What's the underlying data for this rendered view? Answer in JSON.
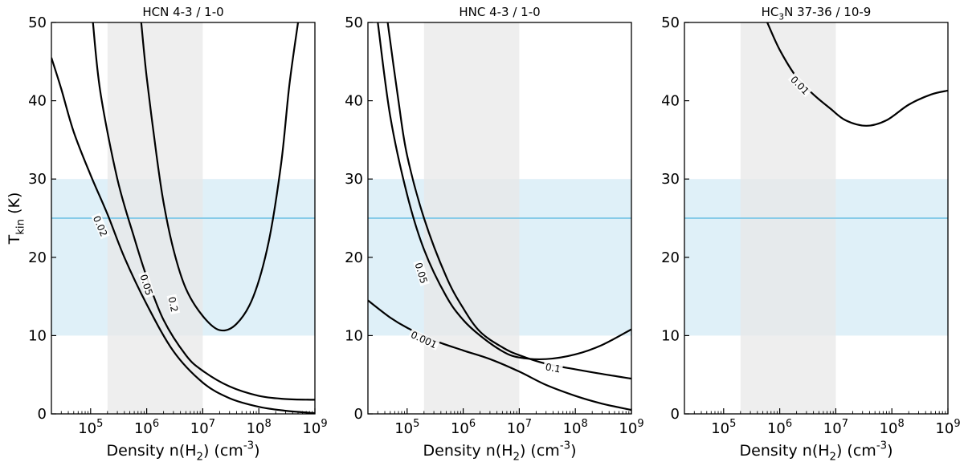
{
  "chart_data": [
    {
      "type": "line",
      "title": "HCN 4-3 / 1-0",
      "xlabel": "Density n(H$_2$) (cm$^{-3}$)",
      "ylabel": "T$_{kin}$ (K)",
      "xscale": "log",
      "xlim": [
        20000,
        1000000000
      ],
      "ylim": [
        0,
        50
      ],
      "xticks": [
        100000,
        1000000,
        10000000,
        100000000,
        1000000000
      ],
      "xtick_labels": [
        "10^5",
        "10^6",
        "10^7",
        "10^8",
        "10^9"
      ],
      "yticks": [
        0,
        10,
        20,
        30,
        40,
        50
      ],
      "ytick_labels": [
        "0",
        "10",
        "20",
        "30",
        "40",
        "50"
      ],
      "grey_band_x": [
        200000,
        10000000
      ],
      "blue_band_y": [
        10,
        30
      ],
      "blue_line_y": 25,
      "colors": {
        "grey_band": "#e8e8e8",
        "blue_band": "#dff0f8",
        "blue_line": "#87cbe8",
        "contour": "#000000"
      },
      "series": [
        {
          "name": "0.02",
          "x": [
            20000,
            30000,
            50000,
            100000,
            200000,
            400000,
            1000000,
            3000000,
            10000000,
            30000000,
            100000000,
            300000000,
            1000000000
          ],
          "y": [
            45.5,
            41.5,
            36,
            30.5,
            25.5,
            20,
            14,
            8,
            4,
            2,
            0.9,
            0.4,
            0.1
          ],
          "label_at": [
            150000,
            24
          ]
        },
        {
          "name": "0.05",
          "x": [
            110000,
            150000,
            300000,
            600000,
            1000000,
            2000000,
            5000000,
            10000000,
            30000000,
            100000000,
            300000000,
            1000000000
          ],
          "y": [
            50,
            41,
            30,
            22.5,
            17.5,
            12,
            7.5,
            5.5,
            3.5,
            2.3,
            1.9,
            1.8
          ],
          "label_at": [
            1000000,
            16.5
          ]
        },
        {
          "name": "0.2",
          "x": [
            800000,
            1000000,
            1500000,
            2000000,
            3000000,
            5000000,
            10000000,
            20000000,
            40000000,
            80000000,
            150000000,
            250000000,
            350000000,
            500000000
          ],
          "y": [
            50,
            43,
            33,
            27,
            21,
            16,
            12.5,
            10.7,
            11.5,
            15,
            22,
            32,
            42,
            50
          ],
          "label_at": [
            3000000,
            14
          ]
        }
      ]
    },
    {
      "type": "line",
      "title": "HNC 4-3 / 1-0",
      "xlabel": "Density n(H$_2$) (cm$^{-3}$)",
      "ylabel": "",
      "xscale": "log",
      "xlim": [
        20000,
        1000000000
      ],
      "ylim": [
        0,
        50
      ],
      "xticks": [
        100000,
        1000000,
        10000000,
        100000000,
        1000000000
      ],
      "xtick_labels": [
        "10^5",
        "10^6",
        "10^7",
        "10^8",
        "10^9"
      ],
      "yticks": [
        0,
        10,
        20,
        30,
        40,
        50
      ],
      "ytick_labels": [
        "0",
        "10",
        "20",
        "30",
        "40",
        "50"
      ],
      "grey_band_x": [
        200000,
        10000000
      ],
      "blue_band_y": [
        10,
        30
      ],
      "blue_line_y": 25,
      "colors": {
        "grey_band": "#e8e8e8",
        "blue_band": "#dff0f8",
        "blue_line": "#87cbe8",
        "contour": "#000000"
      },
      "series": [
        {
          "name": "0.001",
          "x": [
            20000,
            50000,
            100000,
            300000,
            1000000,
            3000000,
            10000000,
            30000000,
            100000000,
            300000000,
            1000000000
          ],
          "y": [
            14.5,
            12.3,
            11,
            9.4,
            8.1,
            7,
            5.4,
            3.7,
            2.3,
            1.3,
            0.5
          ],
          "label_at": [
            200000,
            9.5
          ]
        },
        {
          "name": "0.05",
          "x": [
            30000,
            50000,
            100000,
            200000,
            500000,
            1000000,
            2000000,
            5000000,
            10000000,
            30000000,
            100000000,
            300000000,
            1000000000
          ],
          "y": [
            50,
            38,
            28,
            21,
            15,
            12,
            10,
            8,
            7.2,
            7,
            7.6,
            8.8,
            10.8
          ],
          "label_at": [
            180000,
            18
          ]
        },
        {
          "name": "0.1",
          "x": [
            45000,
            70000,
            100000,
            200000,
            500000,
            1000000,
            2000000,
            5000000,
            10000000,
            30000000,
            100000000,
            300000000,
            1000000000
          ],
          "y": [
            50,
            40,
            33,
            25,
            17.5,
            13.5,
            10.5,
            8.5,
            7.5,
            6.4,
            5.7,
            5.1,
            4.5
          ],
          "label_at": [
            40000000,
            5.9
          ]
        }
      ]
    },
    {
      "type": "line",
      "title": "HC$_3$N 37-36 / 10-9",
      "xlabel": "Density n(H$_2$) (cm$^{-3}$)",
      "ylabel": "",
      "xscale": "log",
      "xlim": [
        20000,
        1000000000
      ],
      "ylim": [
        0,
        50
      ],
      "xticks": [
        100000,
        1000000,
        10000000,
        100000000,
        1000000000
      ],
      "xtick_labels": [
        "10^5",
        "10^6",
        "10^7",
        "10^8",
        "10^9"
      ],
      "yticks": [
        0,
        10,
        20,
        30,
        40,
        50
      ],
      "ytick_labels": [
        "0",
        "10",
        "20",
        "30",
        "40",
        "50"
      ],
      "grey_band_x": [
        200000,
        10000000
      ],
      "blue_band_y": [
        10,
        30
      ],
      "blue_line_y": 25,
      "colors": {
        "grey_band": "#e8e8e8",
        "blue_band": "#dff0f8",
        "blue_line": "#87cbe8",
        "contour": "#000000"
      },
      "series": [
        {
          "name": "0.01",
          "x": [
            600000,
            1000000,
            2000000,
            4000000,
            8000000,
            15000000,
            35000000,
            80000000,
            200000000,
            500000000,
            1000000000
          ],
          "y": [
            50,
            46.5,
            43,
            40.8,
            39,
            37.5,
            36.8,
            37.5,
            39.5,
            40.8,
            41.3
          ],
          "label_at": [
            2300000,
            42
          ]
        }
      ]
    }
  ]
}
